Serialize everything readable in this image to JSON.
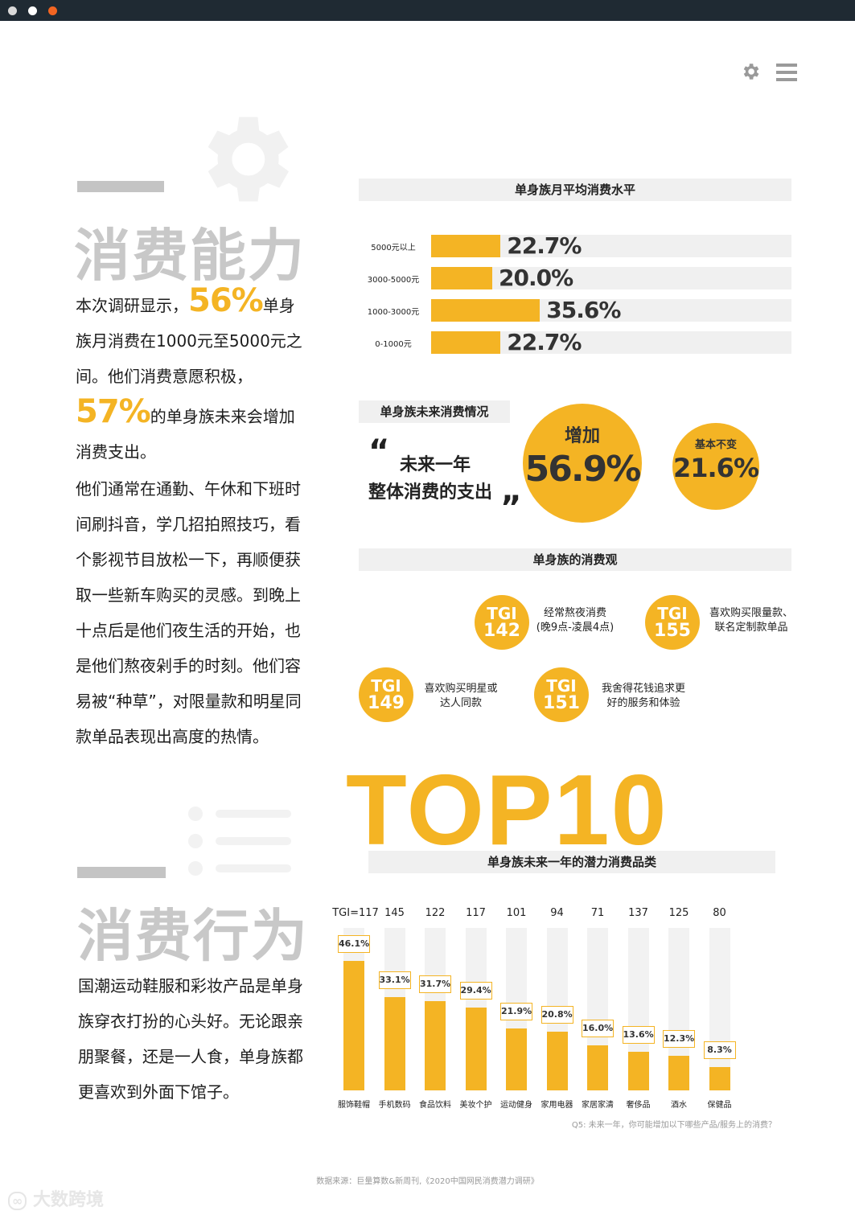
{
  "section1": {
    "title": "消费能力",
    "p1_a": "本次调研显示，",
    "p1_pct": "56%",
    "p1_b": "单身族月消费在1000元至5000元之间。他们消费意愿积极，",
    "p1_pct2": "57%",
    "p1_c": "的单身族未来会增加消费支出。",
    "p2": "他们通常在通勤、午休和下班时间刷抖音，学几招拍照技巧，看个影视节目放松一下，再顺便获取一些新车购买的灵感。到晚上十点后是他们夜生活的开始，也是他们熬夜剁手的时刻。他们容易被“种草”，对限量款和明星同款单品表现出高度的热情。"
  },
  "monthly": {
    "title": "单身族月平均消费水平",
    "rows": [
      {
        "label": "5000元以上",
        "value": 22.7,
        "text": "22.7%"
      },
      {
        "label": "3000-5000元",
        "value": 20.0,
        "text": "20.0%"
      },
      {
        "label": "1000-3000元",
        "value": 35.6,
        "text": "35.6%"
      },
      {
        "label": "0-1000元",
        "value": 22.7,
        "text": "22.7%"
      }
    ]
  },
  "future": {
    "title": "单身族未来消费情况",
    "quote_open": "“",
    "quote_l1": "未来一年",
    "quote_l2": "整体消费的支出",
    "quote_close": "”",
    "inc_label": "增加",
    "inc_value": "56.9%",
    "same_label": "基本不变",
    "same_value": "21.6%"
  },
  "views": {
    "title": "单身族的消费观",
    "items": [
      {
        "tgi": "TGI",
        "num": "142",
        "l1": "经常熬夜消费",
        "l2": "(晚9点-凌晨4点)"
      },
      {
        "tgi": "TGI",
        "num": "155",
        "l1": "喜欢购买限量款、",
        "l2": "联名定制款单品"
      },
      {
        "tgi": "TGI",
        "num": "149",
        "l1": "喜欢购买明星或",
        "l2": "达人同款"
      },
      {
        "tgi": "TGI",
        "num": "151",
        "l1": "我舍得花钱追求更",
        "l2": "好的服务和体验"
      }
    ]
  },
  "section2": {
    "title": "消费行为",
    "p1": "国潮运动鞋服和彩妆产品是单身族穿衣打扮的心头好。无论跟亲朋聚餐，还是一人食，单身族都更喜欢到外面下馆子。"
  },
  "top10": {
    "big": "TOP10",
    "title": "单身族未来一年的潜力消费品类",
    "note": "Q5: 未来一年，你可能增加以下哪些产品/服务上的消费？"
  },
  "chart_data": {
    "type": "bar",
    "title": "单身族未来一年的潜力消费品类",
    "categories": [
      "服饰鞋帽",
      "手机数码",
      "食品饮料",
      "美妆个护",
      "运动健身",
      "家用电器",
      "家居家清",
      "奢侈品",
      "酒水",
      "保健品"
    ],
    "values": [
      46.1,
      33.1,
      31.7,
      29.4,
      21.9,
      20.8,
      16.0,
      13.6,
      12.3,
      8.3
    ],
    "value_labels": [
      "46.1%",
      "33.1%",
      "31.7%",
      "29.4%",
      "21.9%",
      "20.8%",
      "16.0%",
      "13.6%",
      "12.3%",
      "8.3%"
    ],
    "tgi": [
      "TGI=117",
      "145",
      "122",
      "117",
      "101",
      "94",
      "71",
      "137",
      "125",
      "80"
    ],
    "ylim": [
      0,
      100
    ],
    "color": "#f4b424"
  },
  "footer": {
    "source": "数据来源：巨量算数&新周刊,《2020中国网民消费潜力调研》",
    "watermark": "大数跨境"
  },
  "colors": {
    "accent": "#f4b424",
    "topbar": "#1f2a33"
  }
}
